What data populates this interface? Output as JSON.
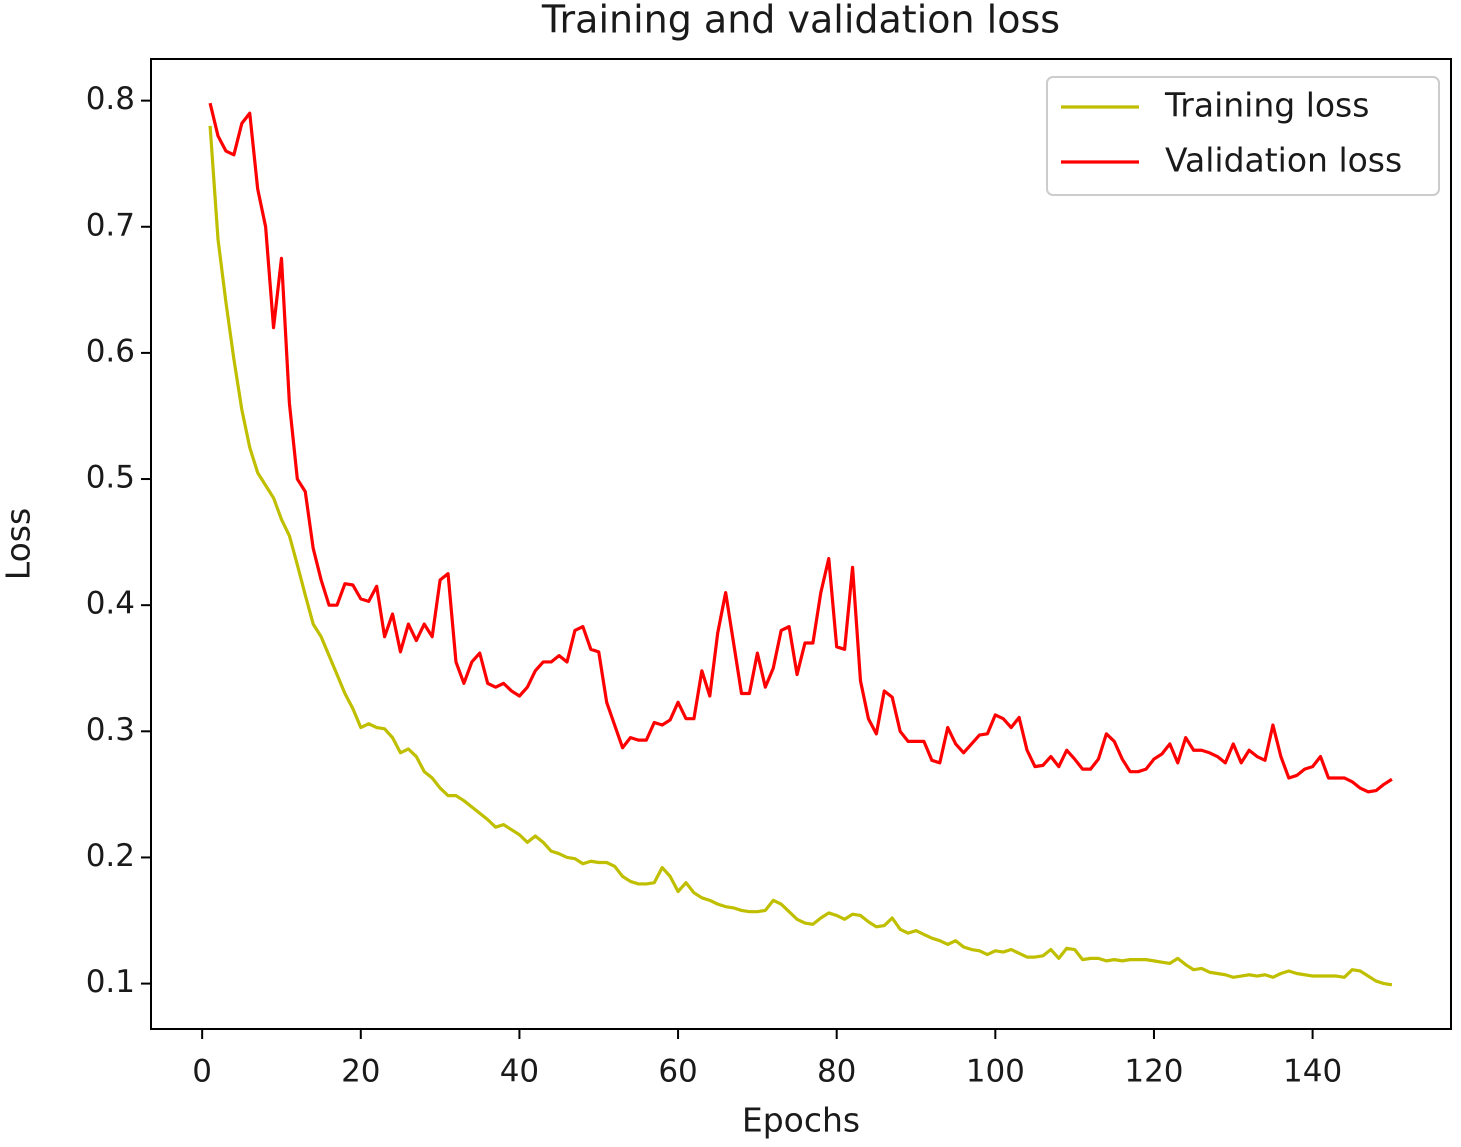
{
  "chart_data": {
    "type": "line",
    "title": "Training and validation loss",
    "x_label": "Epochs",
    "y_label": "Loss",
    "x": [
      1,
      2,
      3,
      4,
      5,
      6,
      7,
      8,
      9,
      10,
      11,
      12,
      13,
      14,
      15,
      16,
      17,
      18,
      19,
      20,
      21,
      22,
      23,
      24,
      25,
      26,
      27,
      28,
      29,
      30,
      31,
      32,
      33,
      34,
      35,
      36,
      37,
      38,
      39,
      40,
      41,
      42,
      43,
      44,
      45,
      46,
      47,
      48,
      49,
      50,
      51,
      52,
      53,
      54,
      55,
      56,
      57,
      58,
      59,
      60,
      61,
      62,
      63,
      64,
      65,
      66,
      67,
      68,
      69,
      70,
      71,
      72,
      73,
      74,
      75,
      76,
      77,
      78,
      79,
      80,
      81,
      82,
      83,
      84,
      85,
      86,
      87,
      88,
      89,
      90,
      91,
      92,
      93,
      94,
      95,
      96,
      97,
      98,
      99,
      100,
      101,
      102,
      103,
      104,
      105,
      106,
      107,
      108,
      109,
      110,
      111,
      112,
      113,
      114,
      115,
      116,
      117,
      118,
      119,
      120,
      121,
      122,
      123,
      124,
      125,
      126,
      127,
      128,
      129,
      130,
      131,
      132,
      133,
      134,
      135,
      136,
      137,
      138,
      139,
      140,
      141,
      142,
      143,
      144,
      145,
      146,
      147,
      148,
      149,
      150
    ],
    "series": [
      {
        "name": "Training loss",
        "color": "#bfbf00",
        "values": [
          0.78,
          0.69,
          0.64,
          0.595,
          0.555,
          0.525,
          0.505,
          0.495,
          0.485,
          0.468,
          0.455,
          0.432,
          0.408,
          0.385,
          0.375,
          0.36,
          0.345,
          0.33,
          0.318,
          0.303,
          0.306,
          0.303,
          0.302,
          0.295,
          0.283,
          0.286,
          0.28,
          0.268,
          0.263,
          0.255,
          0.249,
          0.249,
          0.245,
          0.24,
          0.235,
          0.23,
          0.224,
          0.226,
          0.222,
          0.218,
          0.212,
          0.217,
          0.212,
          0.205,
          0.203,
          0.2,
          0.199,
          0.195,
          0.197,
          0.196,
          0.196,
          0.193,
          0.185,
          0.181,
          0.179,
          0.179,
          0.18,
          0.192,
          0.185,
          0.173,
          0.18,
          0.172,
          0.168,
          0.166,
          0.163,
          0.161,
          0.16,
          0.158,
          0.157,
          0.157,
          0.158,
          0.166,
          0.163,
          0.157,
          0.151,
          0.148,
          0.147,
          0.152,
          0.156,
          0.154,
          0.151,
          0.155,
          0.154,
          0.149,
          0.145,
          0.146,
          0.152,
          0.143,
          0.14,
          0.142,
          0.139,
          0.136,
          0.134,
          0.131,
          0.134,
          0.129,
          0.127,
          0.126,
          0.123,
          0.126,
          0.125,
          0.127,
          0.124,
          0.121,
          0.121,
          0.122,
          0.127,
          0.12,
          0.128,
          0.127,
          0.119,
          0.12,
          0.12,
          0.118,
          0.119,
          0.118,
          0.119,
          0.119,
          0.119,
          0.118,
          0.117,
          0.116,
          0.12,
          0.115,
          0.111,
          0.112,
          0.109,
          0.108,
          0.107,
          0.105,
          0.106,
          0.107,
          0.106,
          0.107,
          0.105,
          0.108,
          0.11,
          0.108,
          0.107,
          0.106,
          0.106,
          0.106,
          0.106,
          0.105,
          0.111,
          0.11,
          0.106,
          0.102,
          0.1,
          0.099
        ]
      },
      {
        "name": "Validation loss",
        "color": "#ff0000",
        "values": [
          0.798,
          0.772,
          0.76,
          0.757,
          0.782,
          0.79,
          0.73,
          0.7,
          0.62,
          0.675,
          0.56,
          0.5,
          0.49,
          0.445,
          0.42,
          0.4,
          0.4,
          0.417,
          0.416,
          0.405,
          0.403,
          0.415,
          0.375,
          0.393,
          0.363,
          0.385,
          0.372,
          0.385,
          0.375,
          0.42,
          0.425,
          0.355,
          0.338,
          0.355,
          0.362,
          0.338,
          0.335,
          0.338,
          0.332,
          0.328,
          0.335,
          0.348,
          0.355,
          0.355,
          0.36,
          0.355,
          0.38,
          0.383,
          0.365,
          0.363,
          0.323,
          0.305,
          0.287,
          0.295,
          0.293,
          0.293,
          0.307,
          0.305,
          0.309,
          0.323,
          0.31,
          0.31,
          0.348,
          0.328,
          0.378,
          0.41,
          0.37,
          0.33,
          0.33,
          0.362,
          0.335,
          0.35,
          0.38,
          0.383,
          0.345,
          0.37,
          0.37,
          0.41,
          0.437,
          0.367,
          0.365,
          0.43,
          0.34,
          0.31,
          0.298,
          0.332,
          0.327,
          0.3,
          0.292,
          0.292,
          0.292,
          0.277,
          0.275,
          0.303,
          0.29,
          0.283,
          0.29,
          0.297,
          0.298,
          0.313,
          0.31,
          0.303,
          0.311,
          0.285,
          0.272,
          0.273,
          0.28,
          0.272,
          0.285,
          0.278,
          0.27,
          0.27,
          0.278,
          0.298,
          0.292,
          0.278,
          0.268,
          0.268,
          0.27,
          0.278,
          0.282,
          0.29,
          0.275,
          0.295,
          0.285,
          0.285,
          0.283,
          0.28,
          0.275,
          0.29,
          0.275,
          0.285,
          0.28,
          0.277,
          0.305,
          0.28,
          0.263,
          0.265,
          0.27,
          0.272,
          0.28,
          0.263,
          0.263,
          0.263,
          0.26,
          0.255,
          0.252,
          0.253,
          0.258,
          0.262
        ]
      }
    ],
    "xlim": [
      -6.45,
      157.45
    ],
    "xticks": [
      0,
      20,
      40,
      60,
      80,
      100,
      120,
      140
    ],
    "ylim": [
      0.064,
      0.833
    ],
    "yticks": [
      0.1,
      0.2,
      0.3,
      0.4,
      0.5,
      0.6,
      0.7,
      0.8
    ],
    "grid": false,
    "legend": "upper right"
  }
}
